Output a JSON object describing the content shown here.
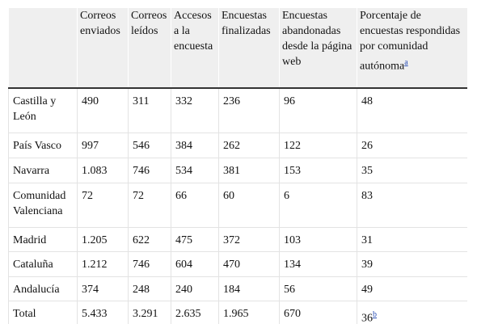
{
  "table": {
    "header": [
      "",
      "Correos enviados",
      "Correos leídos",
      "Accesos a la encuesta",
      "Encuestas finalizadas",
      "Encuestas abandonadas desde la página web",
      "Porcentaje de encuestas respondidas por comunidad autónoma"
    ],
    "header_note": "a",
    "rows": [
      [
        "Castilla y León",
        "490",
        "311",
        "332",
        "236",
        "96",
        "48"
      ],
      [
        "País Vasco",
        "997",
        "546",
        "384",
        "262",
        "122",
        "26"
      ],
      [
        "Navarra",
        "1.083",
        "746",
        "534",
        "381",
        "153",
        "35"
      ],
      [
        "Comunidad Valenciana",
        "72",
        "72",
        "66",
        "60",
        "6",
        "83"
      ],
      [
        "Madrid",
        "1.205",
        "622",
        "475",
        "372",
        "103",
        "31"
      ],
      [
        "Cataluña",
        "1.212",
        "746",
        "604",
        "470",
        "134",
        "39"
      ],
      [
        "Andalucía",
        "374",
        "248",
        "240",
        "184",
        "56",
        "49"
      ],
      [
        "Total",
        "5.433",
        "3.291",
        "2.635",
        "1.965",
        "670",
        "36"
      ]
    ],
    "total_note": "b"
  }
}
